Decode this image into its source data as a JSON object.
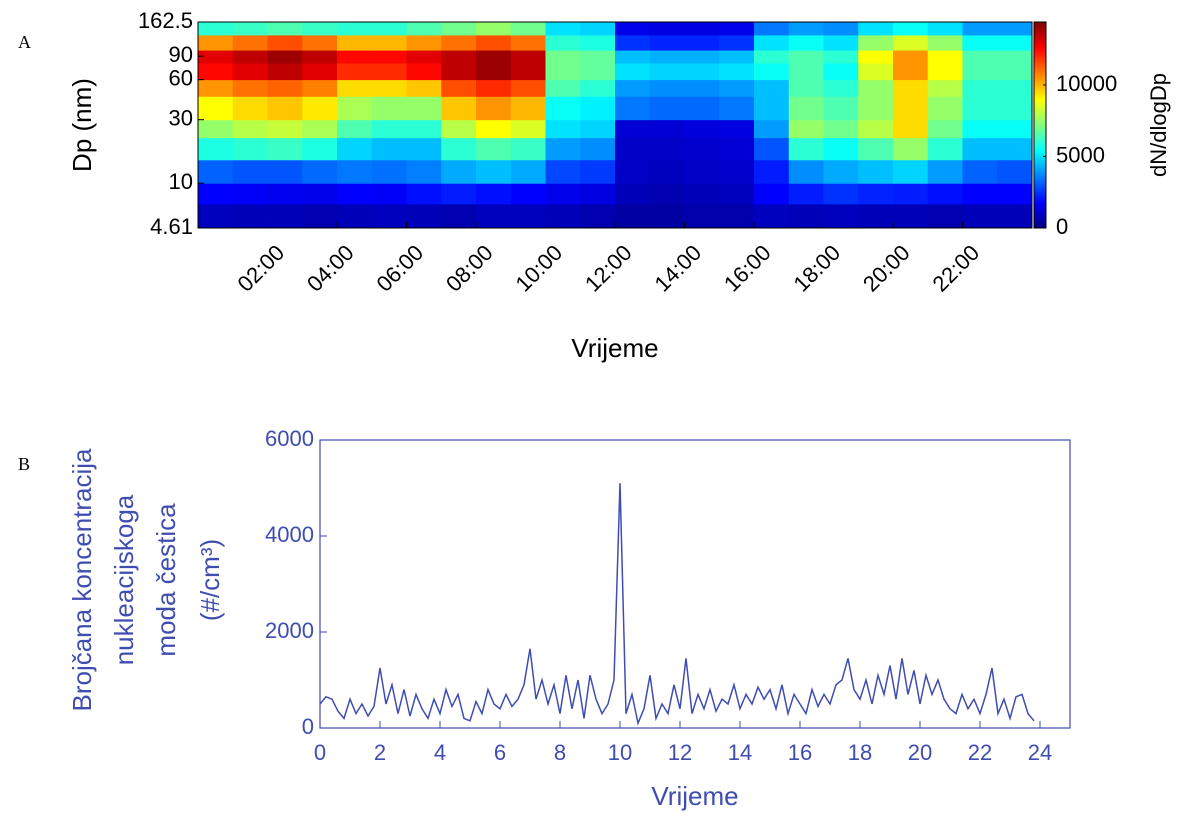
{
  "chart_data": [
    {
      "type": "heatmap",
      "panel_label": "A",
      "xlabel": "Vrijeme",
      "ylabel": "Dp (nm)",
      "colorbar_label": "dN/dlogDp",
      "colormap": "jet",
      "ylog": true,
      "xlim": [
        0,
        24
      ],
      "ylim": [
        4.61,
        162.5
      ],
      "clim": [
        0,
        14400
      ],
      "xticks": [
        {
          "value": 2,
          "label": "02:00"
        },
        {
          "value": 4,
          "label": "04:00"
        },
        {
          "value": 6,
          "label": "06:00"
        },
        {
          "value": 8,
          "label": "08:00"
        },
        {
          "value": 10,
          "label": "10:00"
        },
        {
          "value": 12,
          "label": "12:00"
        },
        {
          "value": 14,
          "label": "14:00"
        },
        {
          "value": 16,
          "label": "16:00"
        },
        {
          "value": 18,
          "label": "18:00"
        },
        {
          "value": 20,
          "label": "20:00"
        },
        {
          "value": 22,
          "label": "22:00"
        }
      ],
      "yticks": [
        4.61,
        10,
        30,
        60,
        90,
        162.5
      ],
      "cticks": [
        0,
        5000,
        10000
      ],
      "x_edges": [
        0,
        1,
        2,
        3,
        4,
        5,
        6,
        7,
        8,
        9,
        10,
        11,
        12,
        13,
        14,
        15,
        16,
        17,
        18,
        19,
        20,
        21,
        22,
        23,
        24
      ],
      "y_edges": [
        4.61,
        7,
        10,
        15,
        22,
        30,
        45,
        60,
        80,
        100,
        130,
        162.5
      ],
      "z": [
        [
          900,
          800,
          800,
          700,
          800,
          900,
          800,
          700,
          900,
          900,
          800,
          700,
          500,
          500,
          600,
          600,
          900,
          800,
          900,
          800,
          800,
          700,
          800,
          800
        ],
        [
          1800,
          1700,
          1600,
          1500,
          1800,
          1700,
          2000,
          2200,
          2000,
          1800,
          1500,
          1400,
          800,
          700,
          800,
          900,
          1800,
          2200,
          2500,
          2300,
          2200,
          2000,
          1800,
          1800
        ],
        [
          3200,
          3000,
          3000,
          3300,
          3500,
          3400,
          3600,
          4200,
          4500,
          4200,
          2800,
          2600,
          1000,
          900,
          1000,
          1100,
          2200,
          3800,
          4200,
          4500,
          4800,
          4000,
          3200,
          3000
        ],
        [
          5800,
          6000,
          6200,
          5800,
          4800,
          4500,
          4500,
          6000,
          6500,
          6200,
          4000,
          3800,
          1000,
          1000,
          1100,
          1200,
          3000,
          6000,
          5500,
          6500,
          7500,
          6000,
          4500,
          4500
        ],
        [
          7500,
          8000,
          8200,
          7800,
          6500,
          6000,
          6000,
          8000,
          9000,
          8500,
          5000,
          4800,
          1200,
          1200,
          1300,
          1400,
          4000,
          7500,
          7000,
          8000,
          9500,
          7000,
          5500,
          5500
        ],
        [
          9000,
          9500,
          9800,
          9300,
          7800,
          7500,
          7500,
          9800,
          10500,
          10000,
          5500,
          5200,
          3500,
          3300,
          3300,
          3500,
          4500,
          7000,
          6500,
          7500,
          9500,
          7500,
          6000,
          6000
        ],
        [
          10500,
          11000,
          11200,
          10800,
          9500,
          9500,
          9800,
          11500,
          12000,
          11500,
          6500,
          6000,
          4000,
          3800,
          3800,
          4000,
          4500,
          6500,
          6000,
          7500,
          9500,
          8000,
          6000,
          6000
        ],
        [
          12500,
          13000,
          13500,
          13000,
          12000,
          12000,
          12500,
          13500,
          14000,
          13500,
          7000,
          6800,
          5000,
          4800,
          4800,
          5000,
          5500,
          6500,
          5500,
          8500,
          10500,
          9000,
          6500,
          6500
        ],
        [
          13000,
          13500,
          14000,
          13500,
          12500,
          12500,
          13000,
          13500,
          14000,
          13500,
          7000,
          6800,
          4500,
          4300,
          4300,
          4500,
          6000,
          6500,
          6000,
          9000,
          10500,
          9000,
          6500,
          6500
        ],
        [
          10500,
          11000,
          11500,
          11000,
          10000,
          10000,
          10500,
          11000,
          11500,
          11000,
          6000,
          5800,
          2500,
          2300,
          2300,
          2500,
          5000,
          5500,
          5000,
          7500,
          8500,
          7500,
          5500,
          5500
        ],
        [
          6000,
          6200,
          6500,
          6200,
          6000,
          6000,
          6500,
          7000,
          7500,
          7000,
          5000,
          4800,
          1500,
          1400,
          1400,
          1500,
          3500,
          4000,
          3800,
          5000,
          5500,
          5000,
          4000,
          4000
        ]
      ]
    },
    {
      "type": "line",
      "panel_label": "B",
      "xlabel": "Vrijeme",
      "ylabel": [
        "Brojčana koncentracija",
        "nukleacijskoga",
        "moda čestica",
        "(#/cm³)"
      ],
      "color": "#3f4cb0",
      "xlim": [
        0,
        25
      ],
      "ylim": [
        0,
        6000
      ],
      "xticks": [
        0,
        2,
        4,
        6,
        8,
        10,
        12,
        14,
        16,
        18,
        20,
        22,
        24
      ],
      "yticks": [
        0,
        2000,
        4000,
        6000
      ],
      "x": [
        0,
        0.2,
        0.4,
        0.6,
        0.8,
        1,
        1.2,
        1.4,
        1.6,
        1.8,
        2,
        2.2,
        2.4,
        2.6,
        2.8,
        3,
        3.2,
        3.4,
        3.6,
        3.8,
        4,
        4.2,
        4.4,
        4.6,
        4.8,
        5,
        5.2,
        5.4,
        5.6,
        5.8,
        6,
        6.2,
        6.4,
        6.6,
        6.8,
        7,
        7.2,
        7.4,
        7.6,
        7.8,
        8,
        8.2,
        8.4,
        8.6,
        8.8,
        9,
        9.2,
        9.4,
        9.6,
        9.8,
        10,
        10.2,
        10.4,
        10.6,
        10.8,
        11,
        11.2,
        11.4,
        11.6,
        11.8,
        12,
        12.2,
        12.4,
        12.6,
        12.8,
        13,
        13.2,
        13.4,
        13.6,
        13.8,
        14,
        14.2,
        14.4,
        14.6,
        14.8,
        15,
        15.2,
        15.4,
        15.6,
        15.8,
        16,
        16.2,
        16.4,
        16.6,
        16.8,
        17,
        17.2,
        17.4,
        17.6,
        17.8,
        18,
        18.2,
        18.4,
        18.6,
        18.8,
        19,
        19.2,
        19.4,
        19.6,
        19.8,
        20,
        20.2,
        20.4,
        20.6,
        20.8,
        21,
        21.2,
        21.4,
        21.6,
        21.8,
        22,
        22.2,
        22.4,
        22.6,
        22.8,
        23,
        23.2,
        23.4,
        23.6,
        23.8
      ],
      "values": [
        500,
        650,
        600,
        350,
        200,
        600,
        300,
        500,
        250,
        450,
        1250,
        500,
        900,
        300,
        800,
        250,
        700,
        400,
        200,
        600,
        300,
        800,
        450,
        700,
        200,
        150,
        550,
        300,
        800,
        500,
        400,
        700,
        450,
        600,
        900,
        1650,
        600,
        1000,
        500,
        900,
        300,
        1100,
        400,
        1000,
        200,
        1100,
        600,
        300,
        500,
        1000,
        5100,
        300,
        700,
        100,
        400,
        1100,
        200,
        500,
        300,
        900,
        400,
        1450,
        300,
        700,
        400,
        800,
        350,
        600,
        500,
        900,
        400,
        700,
        500,
        850,
        600,
        800,
        400,
        900,
        300,
        700,
        500,
        300,
        800,
        450,
        700,
        500,
        900,
        1000,
        1450,
        800,
        600,
        1000,
        500,
        1100,
        700,
        1300,
        600,
        1450,
        700,
        1200,
        500,
        1100,
        700,
        1000,
        600,
        400,
        300,
        700,
        400,
        600,
        300,
        700,
        1250,
        300,
        600,
        200,
        650,
        700,
        300,
        150
      ]
    }
  ]
}
